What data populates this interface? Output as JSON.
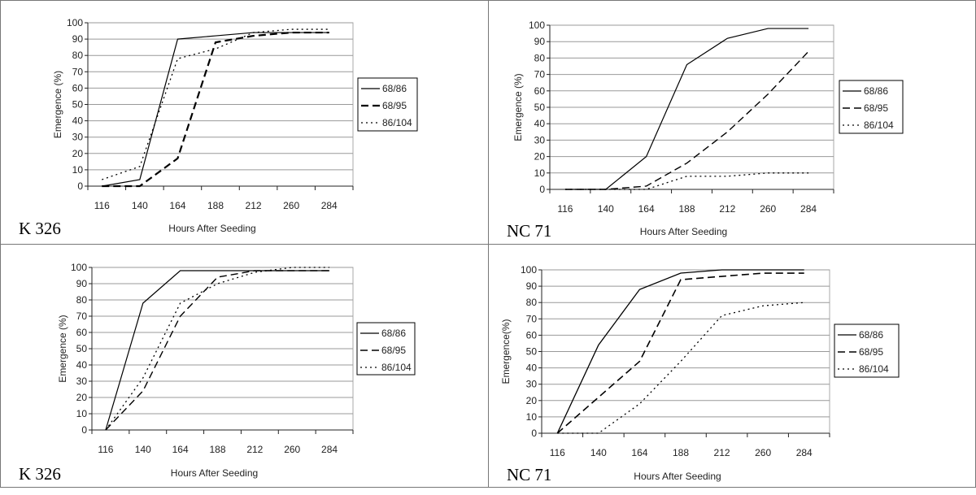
{
  "chart_data": [
    {
      "type": "line",
      "panel_label": "K 326",
      "xlabel": "Hours After Seeding",
      "ylabel": "Emergence (%)",
      "categories": [
        "116",
        "140",
        "164",
        "188",
        "212",
        "260",
        "284"
      ],
      "ylim": [
        0,
        100
      ],
      "yticks": [
        0,
        10,
        20,
        30,
        40,
        50,
        60,
        70,
        80,
        90,
        100
      ],
      "grid": true,
      "legend": "right",
      "series": [
        {
          "name": "68/86",
          "style": "solid",
          "values": [
            0,
            4,
            90,
            92,
            94,
            94,
            94
          ]
        },
        {
          "name": "68/95",
          "style": "dashed",
          "values": [
            0,
            0,
            17,
            88,
            92,
            94,
            94
          ]
        },
        {
          "name": "86/104",
          "style": "dotted",
          "values": [
            4,
            12,
            78,
            84,
            94,
            96,
            96
          ]
        }
      ]
    },
    {
      "type": "line",
      "panel_label": "NC 71",
      "xlabel": "Hours After Seeding",
      "ylabel": "Emergence (%)",
      "categories": [
        "116",
        "140",
        "164",
        "188",
        "212",
        "260",
        "284"
      ],
      "ylim": [
        0,
        100
      ],
      "yticks": [
        0,
        10,
        20,
        30,
        40,
        50,
        60,
        70,
        80,
        90,
        100
      ],
      "grid": true,
      "legend": "right",
      "series": [
        {
          "name": "68/86",
          "style": "solid",
          "values": [
            0,
            0,
            20,
            76,
            92,
            98,
            98
          ]
        },
        {
          "name": "68/95",
          "style": "dashed",
          "values": [
            0,
            0,
            2,
            16,
            35,
            58,
            84
          ]
        },
        {
          "name": "86/104",
          "style": "dotted",
          "values": [
            0,
            0,
            0,
            8,
            8,
            10,
            10
          ]
        }
      ]
    },
    {
      "type": "line",
      "panel_label": "K 326",
      "xlabel": "Hours After Seeding",
      "ylabel": "Emergence (%)",
      "categories": [
        "116",
        "140",
        "164",
        "188",
        "212",
        "260",
        "284"
      ],
      "ylim": [
        0,
        100
      ],
      "yticks": [
        0,
        10,
        20,
        30,
        40,
        50,
        60,
        70,
        80,
        90,
        100
      ],
      "grid": true,
      "legend": "right",
      "series": [
        {
          "name": "68/86",
          "style": "solid",
          "values": [
            0,
            78,
            98,
            98,
            98,
            98,
            98
          ]
        },
        {
          "name": "68/95",
          "style": "dashed",
          "values": [
            0,
            24,
            70,
            94,
            98,
            98,
            98
          ]
        },
        {
          "name": "86/104",
          "style": "dotted",
          "values": [
            0,
            32,
            78,
            90,
            97,
            100,
            100
          ]
        }
      ]
    },
    {
      "type": "line",
      "panel_label": "NC 71",
      "xlabel": "Hours After Seeding",
      "ylabel": "Emergence(%)",
      "categories": [
        "116",
        "140",
        "164",
        "188",
        "212",
        "260",
        "284"
      ],
      "ylim": [
        0,
        100
      ],
      "yticks": [
        0,
        10,
        20,
        30,
        40,
        50,
        60,
        70,
        80,
        90,
        100
      ],
      "grid": true,
      "legend": "right",
      "series": [
        {
          "name": "68/86",
          "style": "solid",
          "values": [
            0,
            54,
            88,
            98,
            100,
            100,
            100
          ]
        },
        {
          "name": "68/95",
          "style": "dashed",
          "values": [
            0,
            22,
            44,
            94,
            96,
            98,
            98
          ]
        },
        {
          "name": "86/104",
          "style": "dotted",
          "values": [
            0,
            0,
            18,
            44,
            72,
            78,
            80
          ]
        }
      ]
    }
  ]
}
